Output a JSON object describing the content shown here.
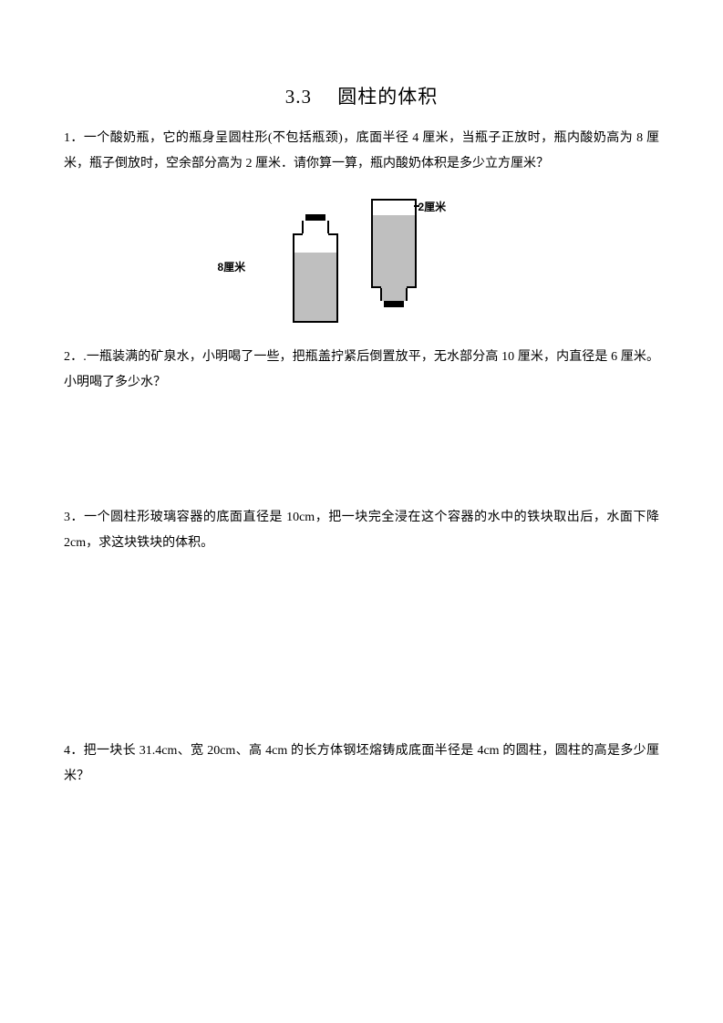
{
  "title": "3.3　 圆柱的体积",
  "q1": "1．一个酸奶瓶，它的瓶身呈圆柱形(不包括瓶颈)，底面半径 4 厘米，当瓶子正放时，瓶内酸奶高为 8 厘米，瓶子倒放时，空余部分高为 2 厘米．请你算一算，瓶内酸奶体积是多少立方厘米？",
  "diagram": {
    "label_left": "8厘米",
    "label_right": "2厘米",
    "fill_color": "#bfbfbf",
    "outline_color": "#000000",
    "background": "#ffffff"
  },
  "q2": "2．.一瓶装满的矿泉水，小明喝了一些，把瓶盖拧紧后倒置放平，无水部分高 10 厘米，内直径是 6 厘米。小明喝了多少水？",
  "q3": "3．一个圆柱形玻璃容器的底面直径是 10cm，把一块完全浸在这个容器的水中的铁块取出后，水面下降2cm，求这块铁块的体积。",
  "q4": "4．把一块长 31.4cm、宽 20cm、高 4cm 的长方体钢坯熔铸成底面半径是 4cm 的圆柱，圆柱的高是多少厘米？"
}
